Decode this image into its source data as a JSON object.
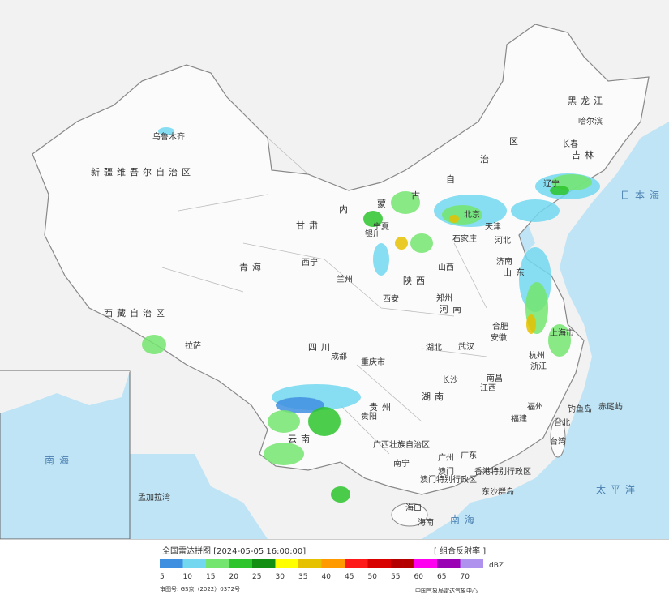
{
  "header": {
    "title": "全国雷达拼图 [2024-05-05 16:00:00]",
    "product": "[ 组合反射率 ]"
  },
  "legend": {
    "unit": "dBZ",
    "levels": [
      {
        "value": 5,
        "color": "#3f8fe0"
      },
      {
        "value": 10,
        "color": "#72d7ef"
      },
      {
        "value": 15,
        "color": "#74e56e"
      },
      {
        "value": 20,
        "color": "#2dc42d"
      },
      {
        "value": 25,
        "color": "#139013"
      },
      {
        "value": 30,
        "color": "#ffff00"
      },
      {
        "value": 35,
        "color": "#e5c100"
      },
      {
        "value": 40,
        "color": "#ff9a00"
      },
      {
        "value": 45,
        "color": "#ff1a1a"
      },
      {
        "value": 50,
        "color": "#d90000"
      },
      {
        "value": 55,
        "color": "#b40000"
      },
      {
        "value": 60,
        "color": "#ff00f0"
      },
      {
        "value": 65,
        "color": "#9a00b4"
      },
      {
        "value": 70,
        "color": "#ae92ee"
      }
    ]
  },
  "footer": {
    "approval": "审图号: GS京（2022）0372号",
    "source": "中国气象局雷达气象中心"
  },
  "labels": [
    "新疆维吾尔自治区",
    "乌鲁木齐",
    "西藏自治区",
    "拉萨",
    "青海",
    "西宁",
    "甘肃",
    "兰州",
    "银川",
    "宁夏",
    "内蒙古自治区",
    "黑龙江",
    "哈尔滨",
    "长春",
    "吉林",
    "辽宁",
    "北京",
    "天津",
    "石家庄",
    "河北",
    "山西",
    "济南",
    "山东",
    "郑州",
    "河南",
    "西安",
    "陕西",
    "合肥",
    "安徽",
    "上海市",
    "武汉",
    "湖北",
    "四川",
    "成都",
    "重庆市",
    "长沙",
    "湖南",
    "南昌",
    "江西",
    "杭州",
    "浙江",
    "福州",
    "福建",
    "台北",
    "台湾",
    "贵州",
    "贵阳",
    "云南",
    "广西壮族自治区",
    "南宁",
    "广州",
    "广东",
    "澳门",
    "香港特别行政区",
    "澳门特别行政区",
    "海口",
    "海南",
    "东沙群岛",
    "钓鱼岛",
    "赤尾屿",
    "日本海",
    "太平洋",
    "南海",
    "孟加拉湾",
    "南海"
  ]
}
